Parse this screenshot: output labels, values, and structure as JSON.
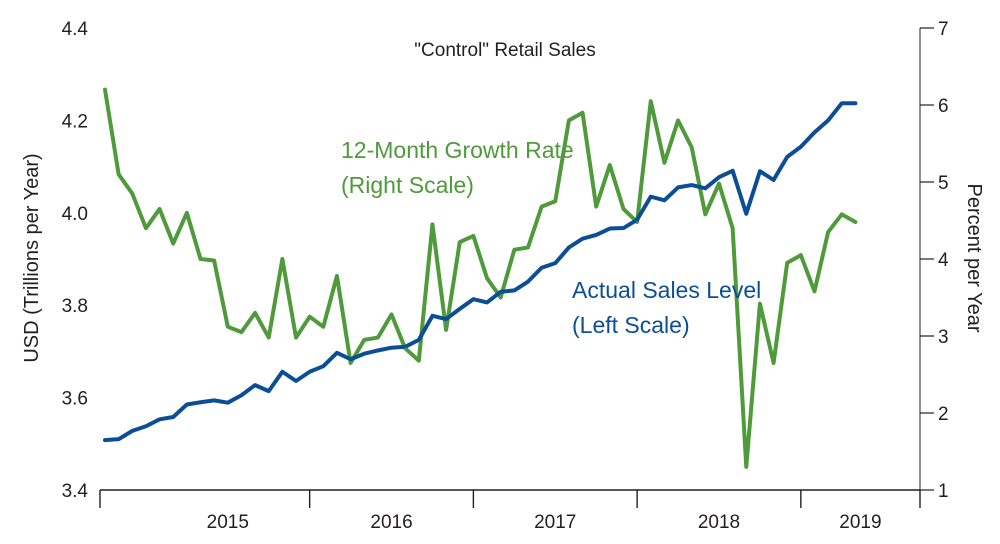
{
  "chart_data": {
    "type": "line",
    "title": "\"Control\" Retail Sales",
    "ylabel_left": "USD (Trillions per Year)",
    "ylabel_right": "Percent per Year",
    "ylim_left": [
      3.4,
      4.4
    ],
    "ylim_right": [
      1,
      7
    ],
    "left_ticks": [
      "3.4",
      "3.6",
      "3.8",
      "4.0",
      "4.2",
      "4.4"
    ],
    "right_ticks": [
      "1",
      "2",
      "3",
      "4",
      "5",
      "6",
      "7"
    ],
    "year_labels": [
      "2015",
      "2016",
      "2017",
      "2018",
      "2019"
    ],
    "x_start": "2014-10",
    "x_end": "2019-09",
    "colors": {
      "sales": "#0b4e96",
      "growth": "#4f9a3a",
      "axis": "#231f20"
    },
    "annotations": {
      "growth_line1": "12-Month Growth Rate",
      "growth_line2": "(Right Scale)",
      "sales_line1": "Actual Sales Level",
      "sales_line2": "(Left Scale)"
    },
    "series": [
      {
        "name": "Actual Sales Level",
        "axis": "left",
        "values": [
          3.508,
          3.51,
          3.528,
          3.538,
          3.553,
          3.558,
          3.585,
          3.59,
          3.594,
          3.589,
          3.605,
          3.627,
          3.614,
          3.656,
          3.636,
          3.656,
          3.668,
          3.697,
          3.683,
          3.695,
          3.702,
          3.708,
          3.71,
          3.725,
          3.777,
          3.77,
          3.792,
          3.813,
          3.806,
          3.829,
          3.832,
          3.851,
          3.881,
          3.891,
          3.925,
          3.944,
          3.952,
          3.966,
          3.967,
          3.985,
          4.035,
          4.027,
          4.055,
          4.06,
          4.053,
          4.077,
          4.091,
          3.998,
          4.09,
          4.071,
          4.121,
          4.143,
          4.174,
          4.2,
          4.237,
          4.237
        ]
      },
      {
        "name": "12-Month Growth Rate",
        "axis": "right",
        "values": [
          6.2,
          5.1,
          4.85,
          4.4,
          4.65,
          4.2,
          4.6,
          4.0,
          3.98,
          3.12,
          3.05,
          3.3,
          2.98,
          4.0,
          2.98,
          3.25,
          3.12,
          3.78,
          2.65,
          2.95,
          2.98,
          3.28,
          2.84,
          2.68,
          4.45,
          3.08,
          4.22,
          4.3,
          3.75,
          3.5,
          4.12,
          4.15,
          4.68,
          4.75,
          5.8,
          5.9,
          4.68,
          5.22,
          4.65,
          4.48,
          6.05,
          5.25,
          5.8,
          5.45,
          4.58,
          4.98,
          4.4,
          1.3,
          3.42,
          2.65,
          3.95,
          4.05,
          3.58,
          4.35,
          4.58,
          4.48
        ]
      }
    ]
  }
}
